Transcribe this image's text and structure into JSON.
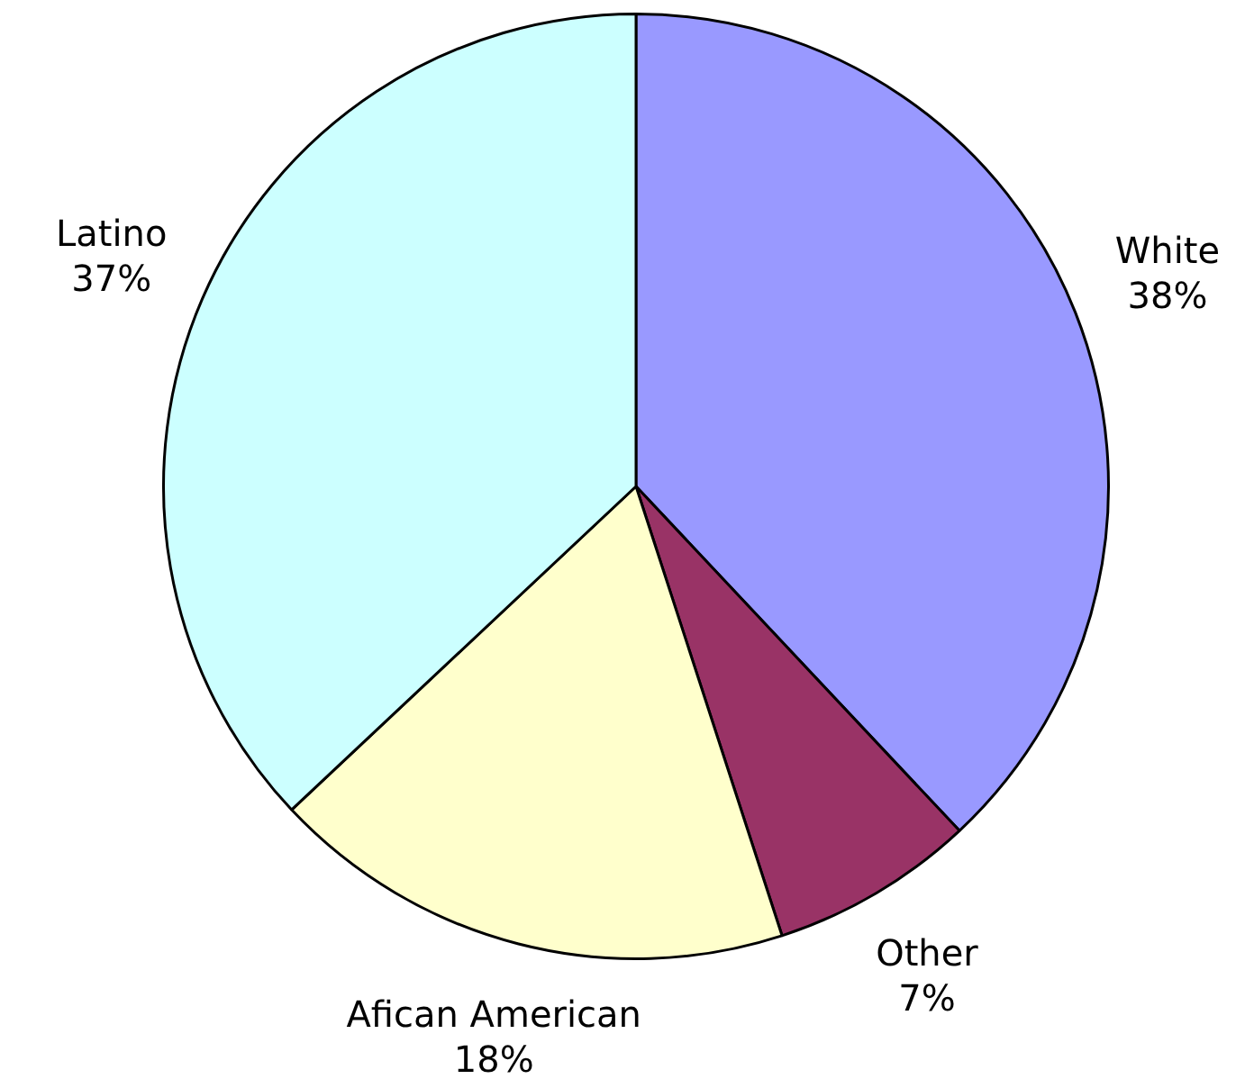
{
  "chart_data": {
    "type": "pie",
    "categories": [
      "White",
      "Other",
      "Afican American",
      "Latino"
    ],
    "values": [
      38,
      7,
      18,
      37
    ],
    "value_labels": [
      "38%",
      "7%",
      "18%",
      "37%"
    ],
    "colors": [
      "#9999ff",
      "#993366",
      "#ffffcc",
      "#ccffff"
    ],
    "legend": false
  }
}
